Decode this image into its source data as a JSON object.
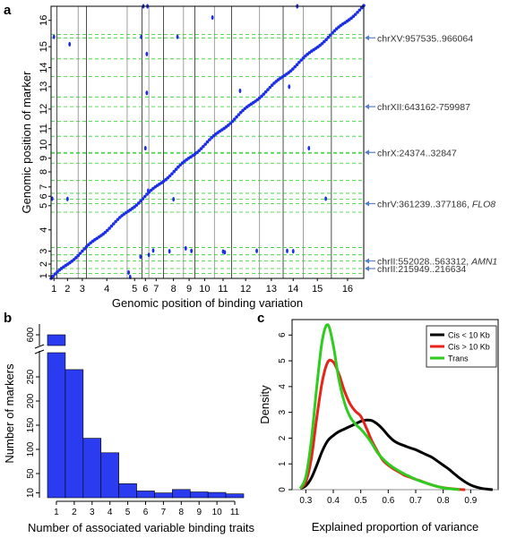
{
  "panel_labels": {
    "a": "a",
    "b": "b",
    "c": "c"
  },
  "colors": {
    "dot": "#1a2ee8",
    "dash": "#2dd12d",
    "arrow": "#5b7fc4",
    "bar": "#2a3bf0",
    "cis_small": "#000000",
    "cis_large": "#e8231a",
    "trans": "#2ecc1f"
  },
  "chart_data": [
    {
      "panel": "a",
      "type": "scatter",
      "title": "",
      "xlabel": "Genomic position of binding variation",
      "ylabel": "Genomic position of marker",
      "x_ticks": [
        "1",
        "2",
        "3",
        "4",
        "5",
        "6",
        "7",
        "8",
        "9",
        "10",
        "11",
        "12",
        "13",
        "14",
        "15",
        "16"
      ],
      "y_ticks": [
        "1",
        "2",
        "3",
        "4",
        "5",
        "6",
        "7",
        "8",
        "9",
        "10",
        "11",
        "12",
        "13",
        "14",
        "15",
        "16"
      ],
      "chromosome_fraction_bounds": [
        0,
        0.0185,
        0.0866,
        0.1132,
        0.2434,
        0.2908,
        0.3127,
        0.3595,
        0.4235,
        0.4597,
        0.5224,
        0.5777,
        0.6667,
        0.7422,
        0.8066,
        0.8965,
        1.0
      ],
      "diagonal": {
        "x": [
          0,
          16
        ],
        "y": [
          0,
          16
        ]
      },
      "annotations": [
        {
          "text": "chrXV:957535..966064",
          "chr": 15,
          "pos": 0.86
        },
        {
          "text": "chrXII:643162-759987",
          "chr": 12,
          "pos": 0.6
        },
        {
          "text": "chrX:24374..32847",
          "chr": 10,
          "pos": 0.05
        },
        {
          "text": "chrV:361239..377186, ",
          "italic": "FLO8",
          "chr": 5,
          "pos": 0.66
        },
        {
          "text": "chrII:552028..563312, ",
          "italic": "AMN1",
          "chr": 2,
          "pos": 0.67
        },
        {
          "text": "chrII:215949..216634",
          "chr": 2,
          "pos": 0.26
        }
      ],
      "dashed_rows": [
        {
          "chr": 15,
          "pos": 0.86
        },
        {
          "chr": 12,
          "pos": 0.6
        },
        {
          "chr": 10,
          "pos": 0.05
        },
        {
          "chr": 5,
          "pos": 0.66
        },
        {
          "chr": 2,
          "pos": 0.67
        },
        {
          "chr": 2,
          "pos": 0.26
        }
      ],
      "off_diagonal_points": [
        {
          "x": 0.5,
          "y": 14.9
        },
        {
          "x": 0.2,
          "y": 5.1
        },
        {
          "x": 1.5,
          "y": 5.05
        },
        {
          "x": 1.6,
          "y": 14.6
        },
        {
          "x": 5.2,
          "y": 16.95
        },
        {
          "x": 5.8,
          "y": 16.6
        },
        {
          "x": 4.95,
          "y": 14.9
        },
        {
          "x": 5.7,
          "y": 14.2
        },
        {
          "x": 7.7,
          "y": 14.9
        },
        {
          "x": 5.7,
          "y": 12.2
        },
        {
          "x": 5.5,
          "y": 9.3
        },
        {
          "x": 9.9,
          "y": 15.6
        },
        {
          "x": 13.7,
          "y": 16.5
        },
        {
          "x": 11.3,
          "y": 12.3
        },
        {
          "x": 13.3,
          "y": 12.5
        },
        {
          "x": 14.8,
          "y": 5.1
        },
        {
          "x": 14.2,
          "y": 9.3
        },
        {
          "x": 4.9,
          "y": 1.9
        },
        {
          "x": 6.0,
          "y": 2.0
        },
        {
          "x": 6.3,
          "y": 2.6
        },
        {
          "x": 7.3,
          "y": 2.5
        },
        {
          "x": 8.2,
          "y": 2.9
        },
        {
          "x": 8.7,
          "y": 2.55
        },
        {
          "x": 10.5,
          "y": 2.45
        },
        {
          "x": 10.6,
          "y": 2.35
        },
        {
          "x": 11.9,
          "y": 2.55
        },
        {
          "x": 13.2,
          "y": 2.55
        },
        {
          "x": 13.5,
          "y": 2.5
        },
        {
          "x": 4.1,
          "y": 1.05
        },
        {
          "x": 4.2,
          "y": 0.3
        },
        {
          "x": 7.5,
          "y": 5.0
        },
        {
          "x": 5.9,
          "y": 6.2
        }
      ]
    },
    {
      "panel": "b",
      "type": "bar",
      "title": "",
      "xlabel": "Number of associated  variable binding traits",
      "ylabel": "Number of markers",
      "categories": [
        "1",
        "2",
        "3",
        "4",
        "5",
        "6",
        "7",
        "8",
        "9",
        "10",
        "11"
      ],
      "values": [
        600,
        265,
        123,
        93,
        29,
        14,
        10,
        17,
        12,
        11,
        8
      ],
      "ylim_lower": [
        0,
        300
      ],
      "y_ticks_lower": [
        10,
        50,
        100,
        150,
        200,
        250
      ],
      "y_ticks_upper": [
        600
      ],
      "axis_break": true
    },
    {
      "panel": "c",
      "type": "line",
      "title": "",
      "xlabel": "Explained proportion of variance",
      "ylabel": "Density",
      "xlim": [
        0.25,
        1.0
      ],
      "ylim": [
        0,
        6.6
      ],
      "x_ticks": [
        "0.3",
        "0.4",
        "0.5",
        "0.6",
        "0.7",
        "0.8",
        "0.9"
      ],
      "y_ticks": [
        "0",
        "1",
        "2",
        "3",
        "4",
        "5",
        "6"
      ],
      "legend_position": "top-right",
      "series": [
        {
          "name": "Cis < 10 Kb",
          "color": "#000000",
          "x": [
            0.28,
            0.3,
            0.32,
            0.34,
            0.36,
            0.38,
            0.4,
            0.42,
            0.44,
            0.46,
            0.48,
            0.5,
            0.52,
            0.54,
            0.56,
            0.58,
            0.6,
            0.62,
            0.64,
            0.66,
            0.68,
            0.7,
            0.72,
            0.74,
            0.76,
            0.78,
            0.8,
            0.82,
            0.84,
            0.86,
            0.88,
            0.9,
            0.92,
            0.94,
            0.96,
            0.98
          ],
          "y": [
            0.05,
            0.15,
            0.45,
            0.95,
            1.5,
            1.9,
            2.1,
            2.25,
            2.35,
            2.45,
            2.55,
            2.65,
            2.7,
            2.68,
            2.55,
            2.35,
            2.1,
            1.9,
            1.78,
            1.7,
            1.62,
            1.55,
            1.45,
            1.35,
            1.25,
            1.1,
            0.95,
            0.8,
            0.62,
            0.45,
            0.3,
            0.18,
            0.1,
            0.05,
            0.02,
            0.0
          ]
        },
        {
          "name": "Cis > 10 Kb",
          "color": "#e8231a",
          "x": [
            0.28,
            0.3,
            0.32,
            0.34,
            0.36,
            0.38,
            0.4,
            0.42,
            0.44,
            0.46,
            0.48,
            0.5,
            0.52,
            0.54,
            0.56,
            0.58,
            0.6,
            0.62,
            0.64,
            0.66,
            0.68,
            0.7,
            0.72,
            0.74,
            0.76,
            0.78,
            0.8,
            0.82,
            0.84,
            0.86,
            0.88
          ],
          "y": [
            0.05,
            0.3,
            1.2,
            2.8,
            4.2,
            4.95,
            4.95,
            4.5,
            3.85,
            3.35,
            3.05,
            2.85,
            2.4,
            1.9,
            1.5,
            1.15,
            0.95,
            0.8,
            0.68,
            0.55,
            0.48,
            0.4,
            0.33,
            0.25,
            0.18,
            0.12,
            0.08,
            0.05,
            0.03,
            0.01,
            0.0
          ]
        },
        {
          "name": "Trans",
          "color": "#2ecc1f",
          "x": [
            0.28,
            0.3,
            0.32,
            0.34,
            0.36,
            0.38,
            0.4,
            0.42,
            0.44,
            0.46,
            0.48,
            0.5,
            0.52,
            0.54,
            0.56,
            0.58,
            0.6,
            0.62,
            0.64,
            0.66,
            0.68,
            0.7,
            0.72,
            0.74,
            0.76,
            0.78,
            0.8,
            0.82,
            0.84,
            0.86
          ],
          "y": [
            0.05,
            0.5,
            1.9,
            4.0,
            5.8,
            6.4,
            5.6,
            4.3,
            3.4,
            2.85,
            2.55,
            2.35,
            2.1,
            1.8,
            1.45,
            1.2,
            1.0,
            0.85,
            0.72,
            0.6,
            0.5,
            0.4,
            0.32,
            0.25,
            0.18,
            0.12,
            0.07,
            0.04,
            0.02,
            0.0
          ]
        }
      ]
    }
  ]
}
